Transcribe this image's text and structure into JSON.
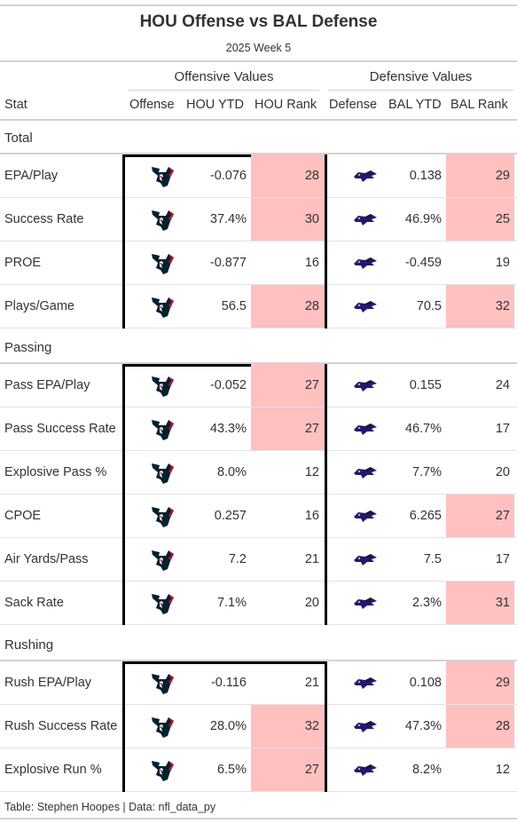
{
  "header": {
    "title": "HOU Offense vs BAL Defense",
    "subtitle": "2025 Week 5"
  },
  "spanners": {
    "offensive": "Offensive Values",
    "defensive": "Defensive Values"
  },
  "columns": {
    "stat": "Stat",
    "offense": "Offense",
    "off_ytd": "HOU YTD",
    "off_rank": "HOU Rank",
    "defense": "Defense",
    "def_ytd": "BAL YTD",
    "def_rank": "BAL Rank"
  },
  "icons": {
    "offense_logo": "texans-logo-icon",
    "defense_logo": "ravens-logo-icon"
  },
  "colors": {
    "highlight": "#ffc0c0",
    "texans_navy": "#03202f",
    "texans_red": "#a71930",
    "ravens_purple": "#241773"
  },
  "groups": [
    {
      "label": "Total",
      "rows": [
        {
          "stat": "EPA/Play",
          "off_ytd": "-0.076",
          "off_rank": "28",
          "off_hl": true,
          "def_ytd": "0.138",
          "def_rank": "29",
          "def_hl": true
        },
        {
          "stat": "Success Rate",
          "off_ytd": "37.4%",
          "off_rank": "30",
          "off_hl": true,
          "def_ytd": "46.9%",
          "def_rank": "25",
          "def_hl": true
        },
        {
          "stat": "PROE",
          "off_ytd": "-0.877",
          "off_rank": "16",
          "off_hl": false,
          "def_ytd": "-0.459",
          "def_rank": "19",
          "def_hl": false
        },
        {
          "stat": "Plays/Game",
          "off_ytd": "56.5",
          "off_rank": "28",
          "off_hl": true,
          "def_ytd": "70.5",
          "def_rank": "32",
          "def_hl": true
        }
      ]
    },
    {
      "label": "Passing",
      "rows": [
        {
          "stat": "Pass EPA/Play",
          "off_ytd": "-0.052",
          "off_rank": "27",
          "off_hl": true,
          "def_ytd": "0.155",
          "def_rank": "24",
          "def_hl": false
        },
        {
          "stat": "Pass Success Rate",
          "off_ytd": "43.3%",
          "off_rank": "27",
          "off_hl": true,
          "def_ytd": "46.7%",
          "def_rank": "17",
          "def_hl": false
        },
        {
          "stat": "Explosive Pass %",
          "off_ytd": "8.0%",
          "off_rank": "12",
          "off_hl": false,
          "def_ytd": "7.7%",
          "def_rank": "20",
          "def_hl": false
        },
        {
          "stat": "CPOE",
          "off_ytd": "0.257",
          "off_rank": "16",
          "off_hl": false,
          "def_ytd": "6.265",
          "def_rank": "27",
          "def_hl": true
        },
        {
          "stat": "Air Yards/Pass",
          "off_ytd": "7.2",
          "off_rank": "21",
          "off_hl": false,
          "def_ytd": "7.5",
          "def_rank": "17",
          "def_hl": false
        },
        {
          "stat": "Sack Rate",
          "off_ytd": "7.1%",
          "off_rank": "20",
          "off_hl": false,
          "def_ytd": "2.3%",
          "def_rank": "31",
          "def_hl": true
        }
      ]
    },
    {
      "label": "Rushing",
      "rows": [
        {
          "stat": "Rush EPA/Play",
          "off_ytd": "-0.116",
          "off_rank": "21",
          "off_hl": false,
          "def_ytd": "0.108",
          "def_rank": "29",
          "def_hl": true
        },
        {
          "stat": "Rush Success Rate",
          "off_ytd": "28.0%",
          "off_rank": "32",
          "off_hl": true,
          "def_ytd": "47.3%",
          "def_rank": "28",
          "def_hl": true
        },
        {
          "stat": "Explosive Run %",
          "off_ytd": "6.5%",
          "off_rank": "27",
          "off_hl": true,
          "def_ytd": "8.2%",
          "def_rank": "12",
          "def_hl": false
        }
      ]
    }
  ],
  "footer": "Table: Stephen Hoopes | Data: nfl_data_py"
}
